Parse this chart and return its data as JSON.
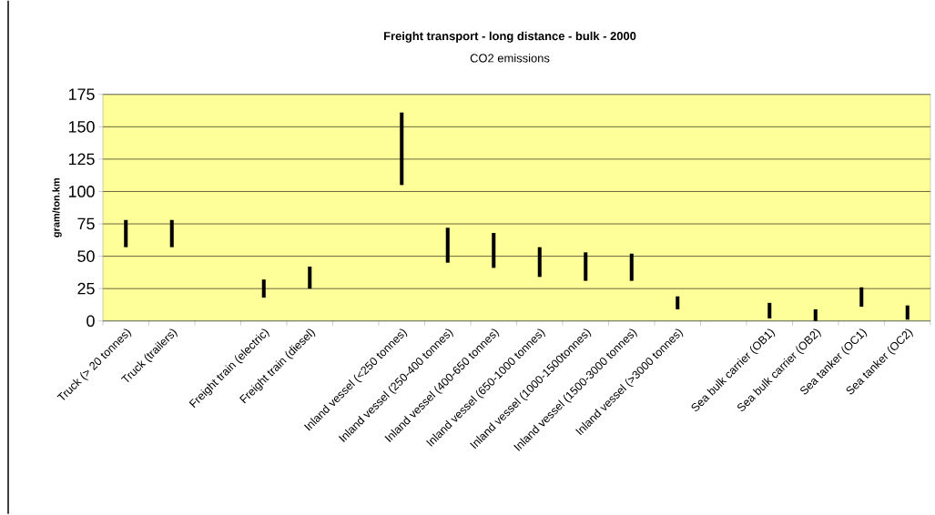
{
  "chart_data": {
    "type": "bar",
    "title": "Freight transport - long distance - bulk - 2000",
    "subtitle": "CO2 emissions",
    "ylabel": "gram/ton.km",
    "categories": [
      "Truck (> 20 tonnes)",
      "Truck (trailers)",
      null,
      "Freight train (electric)",
      "Freight train (diesel)",
      null,
      "Inland vessel (<250 tonnes)",
      "Inland vessel (250-400 tonnes)",
      "Inland vessel (400-650 tonnes)",
      "Inland vessel (650-1000 tonnes)",
      "Inland vessel (1000-1500tonnes)",
      "Inland vessel (1500-3000 tonnes)",
      "Inland vessel (>3000 tonnes)",
      null,
      "Sea bulk carrier (OB1)",
      "Sea bulk carrier (OB2)",
      "Sea tanker (OC1)",
      "Sea tanker (OC2)"
    ],
    "base": [
      57,
      57,
      null,
      18,
      25,
      null,
      105,
      45,
      41,
      34,
      31,
      31,
      9,
      null,
      2,
      0,
      11,
      1
    ],
    "values": [
      21,
      21,
      null,
      14,
      17,
      null,
      56,
      27,
      27,
      23,
      22,
      21,
      10,
      null,
      12,
      9,
      15,
      11
    ],
    "color": "#000000",
    "ylim": [
      0,
      175
    ],
    "yticks": [
      0,
      25,
      50,
      75,
      100,
      125,
      150,
      175
    ],
    "grid": "y"
  }
}
